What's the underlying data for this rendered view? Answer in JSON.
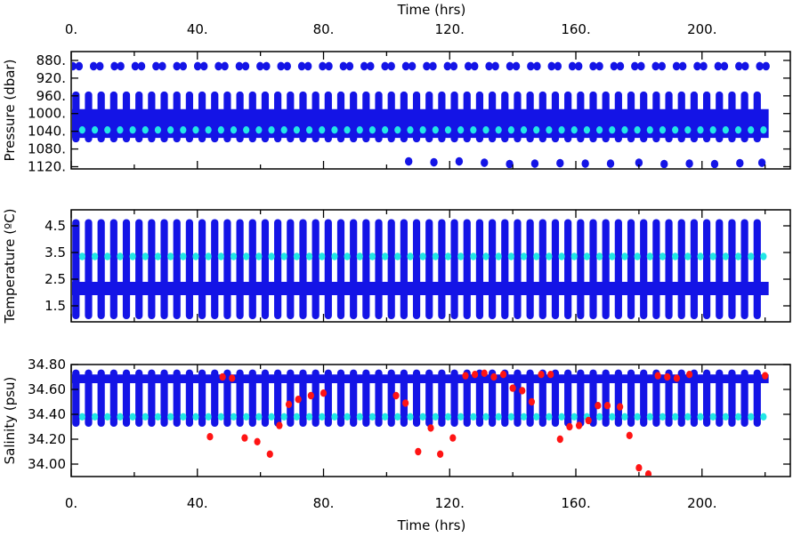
{
  "x_axis": {
    "label": "Time (hrs)",
    "ticks": [
      0,
      40,
      80,
      120,
      160,
      200
    ],
    "tick_labels": [
      "0.",
      "40.",
      "80.",
      "120.",
      "160.",
      "200."
    ],
    "minor_step": 20
  },
  "colors": {
    "main_series": "#1414e6",
    "aux_series": "#22e6e6",
    "flagged": "#ff1414",
    "axis": "#000000"
  },
  "chart_data": [
    {
      "type": "scatter",
      "ylabel": "Pressure (dbar)",
      "xlim": [
        0,
        228
      ],
      "ylim": [
        1125,
        860
      ],
      "y_inverted": true,
      "y_ticks": [
        880,
        920,
        960,
        1000,
        1040,
        1080,
        1120
      ],
      "y_tick_labels": [
        "880.",
        "920.",
        "960.",
        "1000.",
        "1040.",
        "1080.",
        "1120."
      ],
      "series": [
        {
          "role": "profile_band",
          "color": "#1414e6",
          "profile_period_hrs": 4.0,
          "time_range": [
            0,
            220
          ],
          "band": [
            990,
            1055
          ],
          "profile_min": 950,
          "profile_max": 1065
        },
        {
          "role": "top_spikes",
          "color": "#1414e6",
          "y": 893
        },
        {
          "role": "deep_points",
          "color": "#1414e6",
          "x": [
            107,
            115,
            123,
            131,
            139,
            147,
            155,
            163,
            171,
            180,
            188,
            196,
            204,
            212,
            219
          ],
          "y": [
            1108,
            1110,
            1108,
            1111,
            1114,
            1113,
            1112,
            1113,
            1113,
            1111,
            1114,
            1113,
            1114,
            1112,
            1111
          ]
        },
        {
          "role": "mean_points",
          "color": "#22e6e6",
          "y": 1037
        }
      ]
    },
    {
      "type": "scatter",
      "ylabel": "Temperature (ºC)",
      "xlim": [
        0,
        228
      ],
      "ylim": [
        0.9,
        5.1
      ],
      "y_inverted": false,
      "y_ticks": [
        1.5,
        2.5,
        3.5,
        4.5
      ],
      "y_tick_labels": [
        "1.5",
        "2.5",
        "3.5",
        "4.5"
      ],
      "series": [
        {
          "role": "profile_columns",
          "color": "#1414e6",
          "profile_period_hrs": 4.0,
          "time_range": [
            0,
            220
          ],
          "profile_min": 1.0,
          "profile_max": 4.75
        },
        {
          "role": "band",
          "color": "#1414e6",
          "band": [
            1.9,
            2.4
          ]
        },
        {
          "role": "mean_points",
          "color": "#22e6e6",
          "y": 3.35
        }
      ]
    },
    {
      "type": "scatter",
      "ylabel": "Salinity (psu)",
      "xlim": [
        0,
        228
      ],
      "ylim": [
        33.9,
        34.8
      ],
      "y_inverted": false,
      "y_ticks": [
        34.0,
        34.2,
        34.4,
        34.6,
        34.8
      ],
      "y_tick_labels": [
        "34.00",
        "34.20",
        "34.40",
        "34.60",
        "34.80"
      ],
      "series": [
        {
          "role": "profile_columns",
          "color": "#1414e6",
          "profile_period_hrs": 4.0,
          "time_range": [
            0,
            220
          ],
          "profile_min": 34.3,
          "profile_max": 34.76
        },
        {
          "role": "band",
          "color": "#1414e6",
          "band": [
            34.65,
            34.72
          ]
        },
        {
          "role": "mean_points",
          "color": "#22e6e6",
          "y": 34.38
        },
        {
          "role": "flagged_points",
          "color": "#ff1414",
          "x": [
            44,
            48,
            51,
            55,
            59,
            63,
            66,
            69,
            72,
            76,
            80,
            103,
            106,
            110,
            114,
            117,
            121,
            125,
            128,
            131,
            134,
            137,
            140,
            143,
            146,
            149,
            152,
            155,
            158,
            161,
            164,
            167,
            170,
            174,
            177,
            180,
            183,
            186,
            189,
            192,
            196,
            220
          ],
          "y": [
            34.22,
            34.7,
            34.69,
            34.21,
            34.18,
            34.08,
            34.31,
            34.48,
            34.52,
            34.55,
            34.57,
            34.55,
            34.49,
            34.1,
            34.29,
            34.08,
            34.21,
            34.71,
            34.72,
            34.73,
            34.7,
            34.72,
            34.61,
            34.59,
            34.5,
            34.72,
            34.72,
            34.2,
            34.3,
            34.31,
            34.35,
            34.47,
            34.47,
            34.46,
            34.23,
            33.97,
            33.92,
            34.71,
            34.7,
            34.69,
            34.72,
            34.71
          ]
        }
      ]
    }
  ]
}
